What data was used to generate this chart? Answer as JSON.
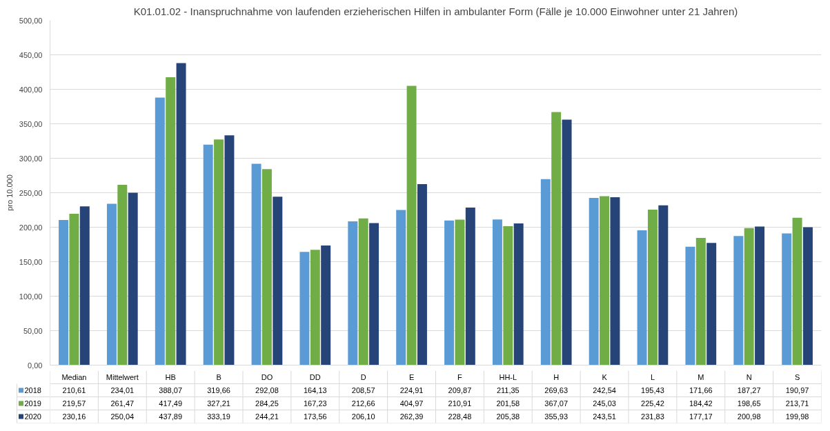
{
  "chart_data": {
    "type": "bar",
    "title": "K01.01.02 - Inanspruchnahme von laufenden erzieherischen Hilfen in ambulanter Form (Fälle je 10.000 Einwohner unter 21 Jahren)",
    "ylabel": "pro 10.000",
    "categories": [
      "Median",
      "Mittelwert",
      "HB",
      "B",
      "DO",
      "DD",
      "D",
      "E",
      "F",
      "HH-L",
      "H",
      "K",
      "L",
      "M",
      "N",
      "S"
    ],
    "series": [
      {
        "name": "2018",
        "color": "#5b9bd5",
        "values": [
          210.61,
          234.01,
          388.07,
          319.66,
          292.08,
          164.13,
          208.57,
          224.91,
          209.87,
          211.35,
          269.63,
          242.54,
          195.43,
          171.66,
          187.27,
          190.97
        ],
        "value_labels": [
          "210,61",
          "234,01",
          "388,07",
          "319,66",
          "292,08",
          "164,13",
          "208,57",
          "224,91",
          "209,87",
          "211,35",
          "269,63",
          "242,54",
          "195,43",
          "171,66",
          "187,27",
          "190,97"
        ]
      },
      {
        "name": "2019",
        "color": "#70ad47",
        "values": [
          219.57,
          261.47,
          417.49,
          327.21,
          284.25,
          167.23,
          212.66,
          404.97,
          210.91,
          201.58,
          367.07,
          245.03,
          225.42,
          184.42,
          198.65,
          213.71
        ],
        "value_labels": [
          "219,57",
          "261,47",
          "417,49",
          "327,21",
          "284,25",
          "167,23",
          "212,66",
          "404,97",
          "210,91",
          "201,58",
          "367,07",
          "245,03",
          "225,42",
          "184,42",
          "198,65",
          "213,71"
        ]
      },
      {
        "name": "2020",
        "color": "#264478",
        "values": [
          230.16,
          250.04,
          437.89,
          333.19,
          244.21,
          173.56,
          206.1,
          262.39,
          228.48,
          205.38,
          355.93,
          243.51,
          231.83,
          177.17,
          200.98,
          199.98
        ],
        "value_labels": [
          "230,16",
          "250,04",
          "437,89",
          "333,19",
          "244,21",
          "173,56",
          "206,10",
          "262,39",
          "228,48",
          "205,38",
          "355,93",
          "243,51",
          "231,83",
          "177,17",
          "200,98",
          "199,98"
        ]
      }
    ],
    "ylim": [
      0,
      500
    ],
    "yticks": [
      {
        "value": 0,
        "label": "0,00"
      },
      {
        "value": 50,
        "label": "50,00"
      },
      {
        "value": 100,
        "label": "100,00"
      },
      {
        "value": 150,
        "label": "150,00"
      },
      {
        "value": 200,
        "label": "200,00"
      },
      {
        "value": 250,
        "label": "250,00"
      },
      {
        "value": 300,
        "label": "300,00"
      },
      {
        "value": 350,
        "label": "350,00"
      },
      {
        "value": 400,
        "label": "400,00"
      },
      {
        "value": 450,
        "label": "450,00"
      },
      {
        "value": 500,
        "label": "500,00"
      }
    ],
    "grid": "y",
    "legend": "bottom"
  }
}
